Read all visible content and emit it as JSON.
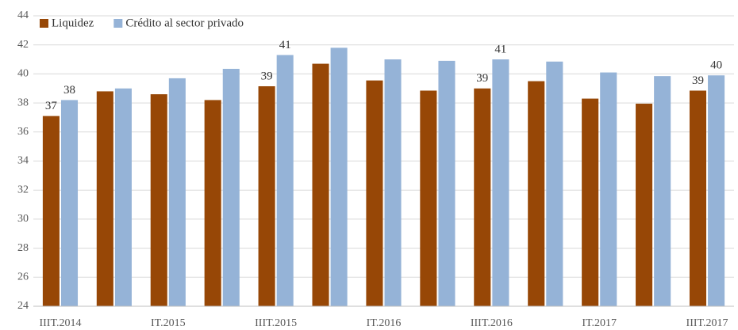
{
  "chart_data": {
    "type": "bar",
    "categories": [
      "IIIT.2014",
      null,
      "IT.2015",
      null,
      "IIIT.2015",
      null,
      "IT.2016",
      null,
      "IIIT.2016",
      null,
      "IT.2017",
      null,
      "IIIT.2017"
    ],
    "series": [
      {
        "name": "Liquidez",
        "color": "#974706",
        "values": [
          37.1,
          38.8,
          38.6,
          38.2,
          39.15,
          40.7,
          39.55,
          38.85,
          39.0,
          39.5,
          38.3,
          37.95,
          38.85
        ],
        "value_labels": [
          "37",
          null,
          null,
          null,
          "39",
          null,
          null,
          null,
          "39",
          null,
          null,
          null,
          "39"
        ]
      },
      {
        "name": "Crédito al sector privado",
        "color": "#95b3d7",
        "values": [
          38.2,
          39.0,
          39.7,
          40.35,
          41.3,
          41.8,
          41.0,
          40.9,
          41.0,
          40.85,
          40.1,
          39.85,
          39.9
        ],
        "value_labels": [
          "38",
          null,
          null,
          null,
          "41",
          null,
          null,
          null,
          "41",
          null,
          null,
          null,
          "40"
        ]
      }
    ],
    "ylim": [
      24,
      44
    ],
    "yticks": [
      24,
      26,
      28,
      30,
      32,
      34,
      36,
      38,
      40,
      42,
      44
    ],
    "grid": true,
    "legend": "top-left"
  }
}
